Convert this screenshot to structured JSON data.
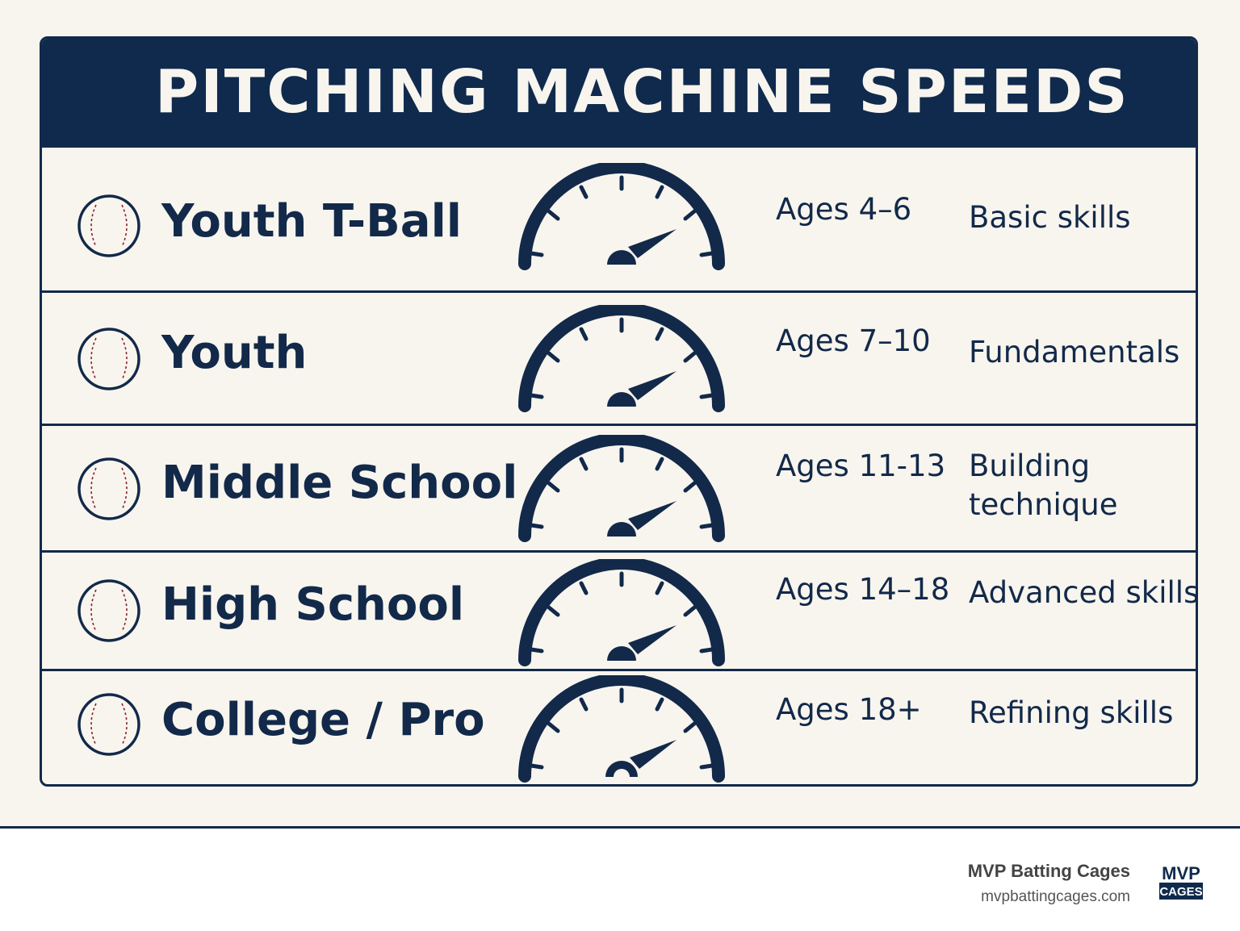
{
  "header": {
    "title": "PITCHING MACHINE SPEEDS"
  },
  "rows": [
    {
      "level": "Youth T-Ball",
      "ages": "Ages 4–6",
      "desc": "Basic skills",
      "icon": "baseball-icon",
      "gauge_icon": "speedometer-icon"
    },
    {
      "level": "Youth",
      "ages": "Ages 7–10",
      "desc": "Fundamentals",
      "icon": "baseball-icon",
      "gauge_icon": "speedometer-icon"
    },
    {
      "level": "Middle School",
      "ages": "Ages 11-13",
      "desc": "Building technique",
      "icon": "baseball-icon",
      "gauge_icon": "speedometer-icon"
    },
    {
      "level": "High School",
      "ages": "Ages 14–18",
      "desc": "Advanced skills",
      "icon": "baseball-icon",
      "gauge_icon": "speedometer-icon"
    },
    {
      "level": "College / Pro",
      "ages": "Ages 18+",
      "desc": "Refining skills",
      "icon": "baseball-icon",
      "gauge_icon": "speedometer-icon"
    }
  ],
  "footer": {
    "brand_name": "MVP Batting Cages",
    "brand_url": "mvpbattingcages.com",
    "logo_line1": "MVP",
    "logo_line2": "CAGES"
  },
  "colors": {
    "navy": "#0f2a4d",
    "background": "#f8f5ee",
    "stitch_red": "#8b1e2b"
  }
}
